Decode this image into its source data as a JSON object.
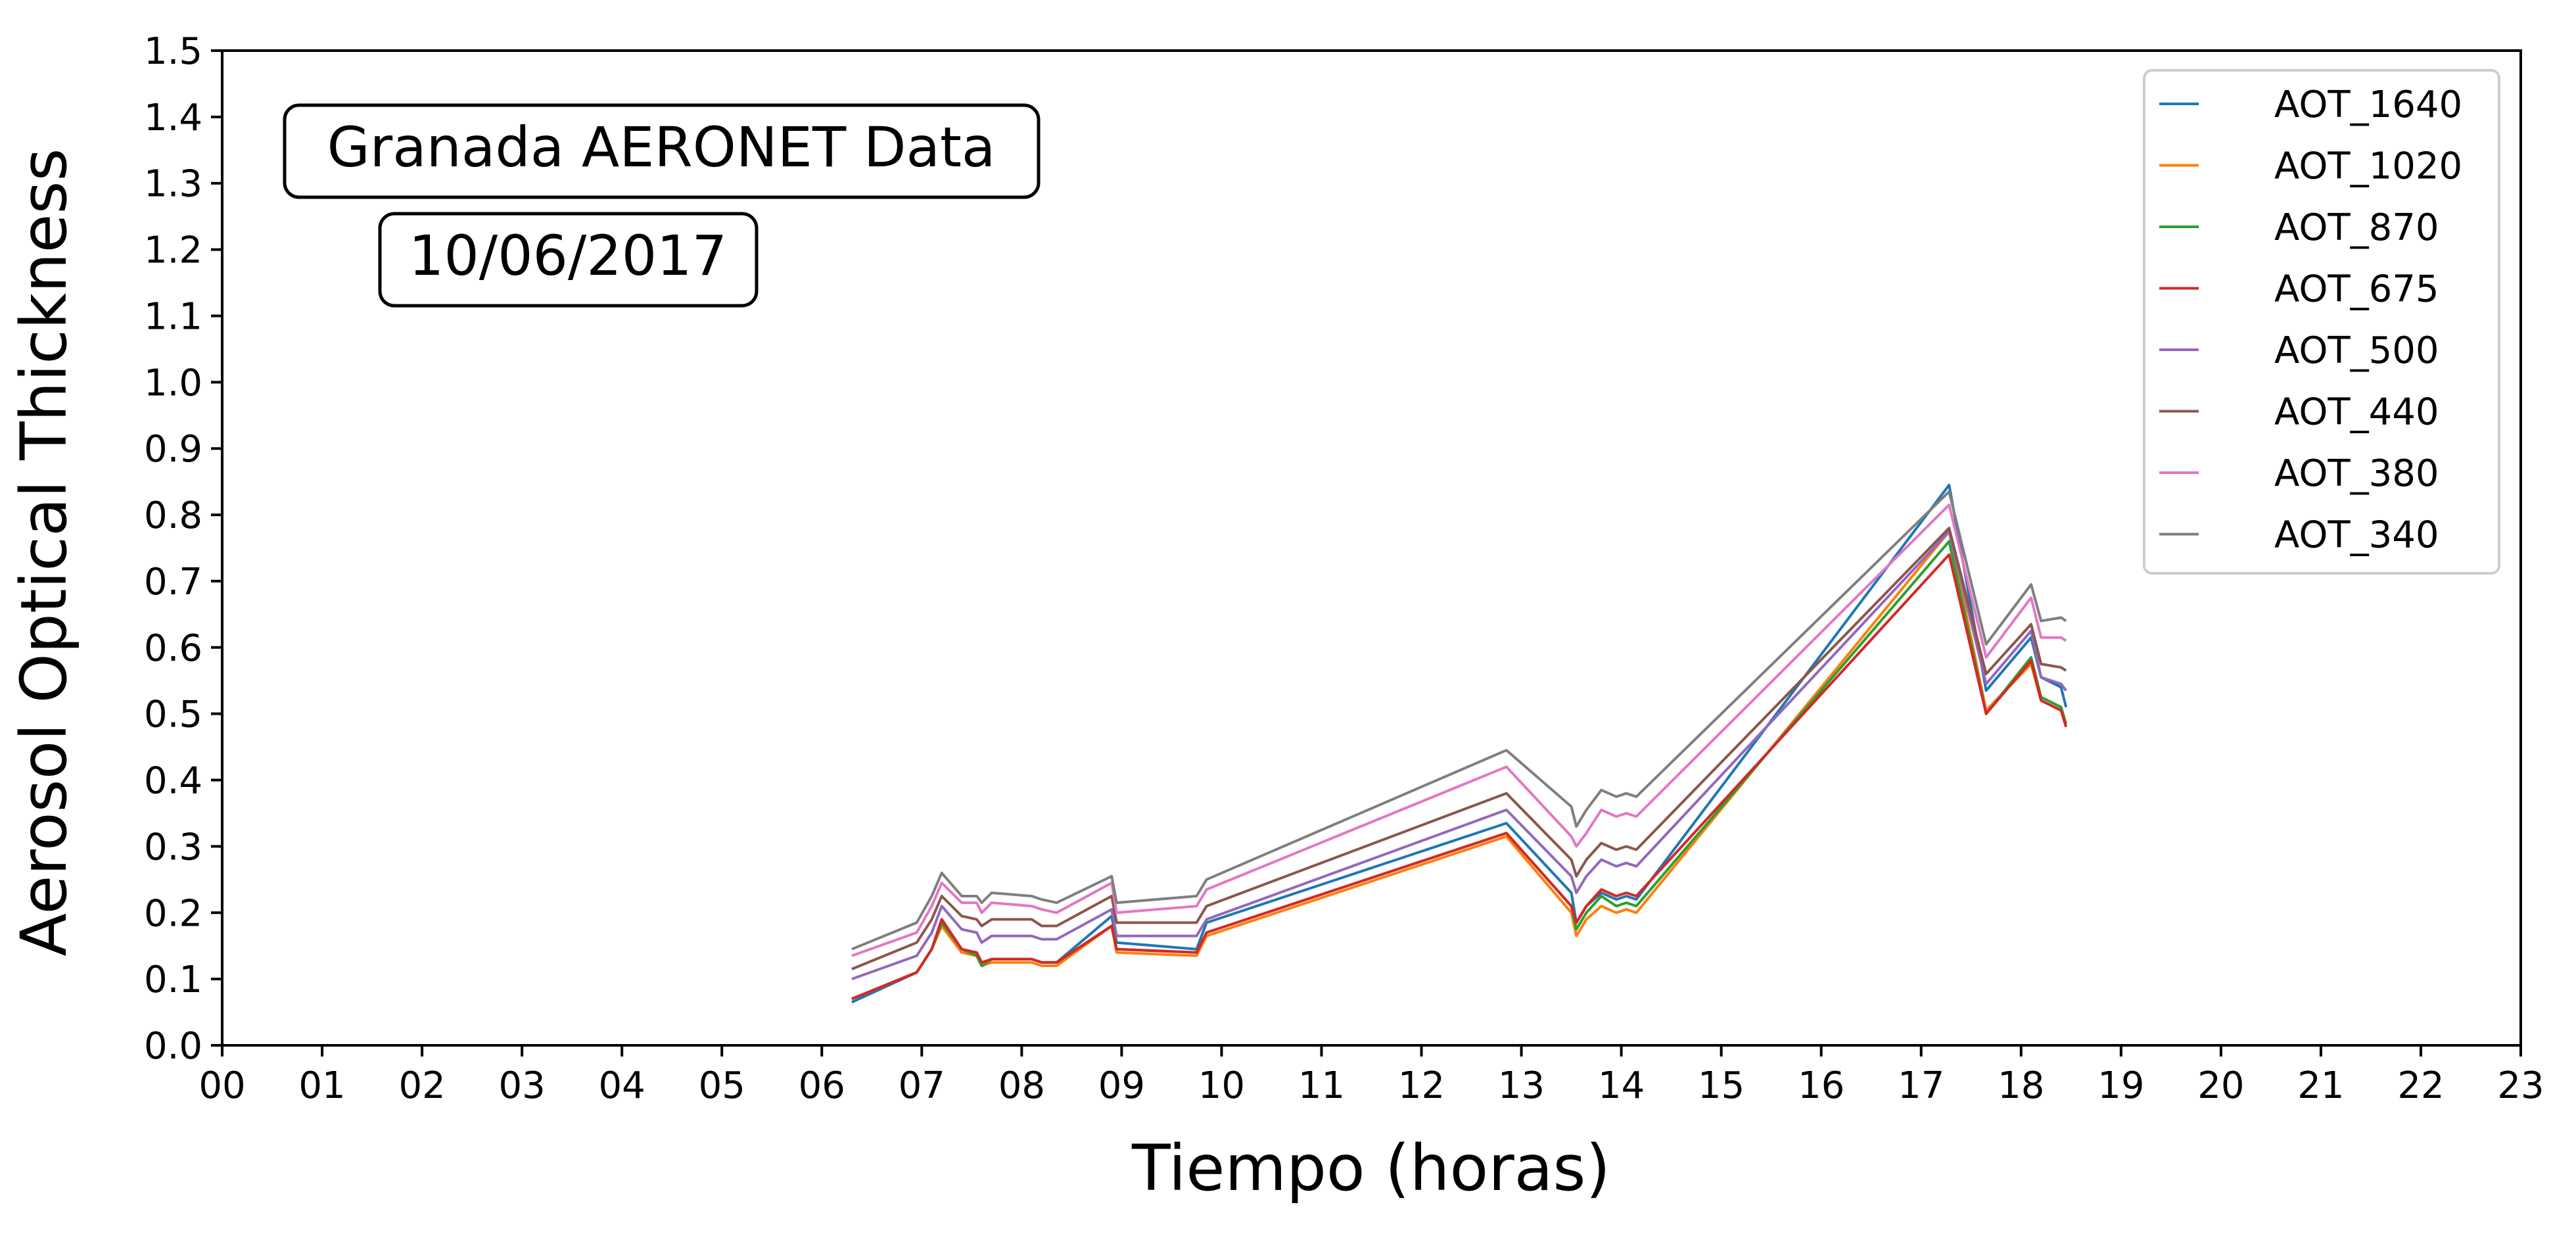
{
  "chart_data": {
    "type": "line",
    "xlabel": "Tiempo (horas)",
    "ylabel": "Aerosol Optical Thickness",
    "xlim": [
      0,
      23
    ],
    "ylim": [
      0.0,
      1.5
    ],
    "xticks": [
      "00",
      "01",
      "02",
      "03",
      "04",
      "05",
      "06",
      "07",
      "08",
      "09",
      "10",
      "11",
      "12",
      "13",
      "14",
      "15",
      "16",
      "17",
      "18",
      "19",
      "20",
      "21",
      "22",
      "23"
    ],
    "yticks": [
      "0.0",
      "0.1",
      "0.2",
      "0.3",
      "0.4",
      "0.5",
      "0.6",
      "0.7",
      "0.8",
      "0.9",
      "1.0",
      "1.1",
      "1.2",
      "1.3",
      "1.4",
      "1.5"
    ],
    "grid": false,
    "legend_position": "top-right",
    "annotations": [
      "Granada AERONET Data",
      "10/06/2017"
    ],
    "x": [
      6.3,
      6.95,
      7.1,
      7.2,
      7.4,
      7.55,
      7.6,
      7.7,
      8.1,
      8.2,
      8.35,
      8.9,
      8.95,
      9.75,
      9.85,
      12.85,
      13.5,
      13.55,
      13.65,
      13.8,
      13.95,
      14.05,
      14.15,
      17.28,
      17.65,
      18.1,
      18.2,
      18.4,
      18.45
    ],
    "series": [
      {
        "name": "AOT_1640",
        "color": "#1f77b4",
        "values": [
          0.065,
          0.11,
          0.145,
          0.19,
          0.145,
          0.135,
          0.12,
          0.13,
          0.13,
          0.125,
          0.125,
          0.195,
          0.155,
          0.145,
          0.185,
          0.335,
          0.23,
          0.185,
          0.21,
          0.23,
          0.22,
          0.225,
          0.22,
          0.845,
          0.535,
          0.615,
          0.555,
          0.54,
          0.51
        ]
      },
      {
        "name": "AOT_1020",
        "color": "#ff7f0e",
        "values": [
          0.07,
          0.11,
          0.145,
          0.18,
          0.14,
          0.135,
          0.12,
          0.125,
          0.125,
          0.12,
          0.12,
          0.18,
          0.14,
          0.135,
          0.165,
          0.315,
          0.2,
          0.165,
          0.19,
          0.21,
          0.2,
          0.205,
          0.2,
          0.775,
          0.505,
          0.575,
          0.52,
          0.505,
          0.485
        ]
      },
      {
        "name": "AOT_870",
        "color": "#2ca02c",
        "values": [
          0.07,
          0.11,
          0.145,
          0.185,
          0.145,
          0.135,
          0.12,
          0.13,
          0.13,
          0.125,
          0.125,
          0.18,
          0.145,
          0.14,
          0.17,
          0.32,
          0.21,
          0.175,
          0.2,
          0.225,
          0.21,
          0.215,
          0.21,
          0.76,
          0.5,
          0.585,
          0.525,
          0.51,
          0.485
        ]
      },
      {
        "name": "AOT_675",
        "color": "#d62728",
        "values": [
          0.07,
          0.11,
          0.145,
          0.19,
          0.145,
          0.14,
          0.125,
          0.13,
          0.13,
          0.125,
          0.125,
          0.18,
          0.145,
          0.14,
          0.17,
          0.32,
          0.21,
          0.185,
          0.21,
          0.235,
          0.225,
          0.23,
          0.225,
          0.74,
          0.5,
          0.58,
          0.52,
          0.505,
          0.48
        ]
      },
      {
        "name": "AOT_500",
        "color": "#9467bd",
        "values": [
          0.1,
          0.135,
          0.17,
          0.21,
          0.175,
          0.17,
          0.155,
          0.165,
          0.165,
          0.16,
          0.16,
          0.205,
          0.165,
          0.165,
          0.19,
          0.355,
          0.255,
          0.23,
          0.255,
          0.28,
          0.27,
          0.275,
          0.27,
          0.775,
          0.545,
          0.625,
          0.555,
          0.545,
          0.535
        ]
      },
      {
        "name": "AOT_440",
        "color": "#8c564b",
        "values": [
          0.115,
          0.155,
          0.19,
          0.225,
          0.195,
          0.19,
          0.18,
          0.19,
          0.19,
          0.18,
          0.18,
          0.225,
          0.185,
          0.185,
          0.21,
          0.38,
          0.28,
          0.255,
          0.28,
          0.305,
          0.295,
          0.3,
          0.295,
          0.78,
          0.56,
          0.635,
          0.575,
          0.57,
          0.565
        ]
      },
      {
        "name": "AOT_380",
        "color": "#e377c2",
        "values": [
          0.135,
          0.17,
          0.21,
          0.245,
          0.215,
          0.215,
          0.2,
          0.215,
          0.21,
          0.205,
          0.2,
          0.245,
          0.2,
          0.21,
          0.235,
          0.42,
          0.315,
          0.3,
          0.32,
          0.355,
          0.345,
          0.35,
          0.345,
          0.815,
          0.585,
          0.675,
          0.615,
          0.615,
          0.61
        ]
      },
      {
        "name": "AOT_340",
        "color": "#7f7f7f",
        "values": [
          0.145,
          0.185,
          0.225,
          0.26,
          0.225,
          0.225,
          0.215,
          0.23,
          0.225,
          0.22,
          0.215,
          0.255,
          0.215,
          0.225,
          0.25,
          0.445,
          0.36,
          0.33,
          0.355,
          0.385,
          0.375,
          0.38,
          0.375,
          0.835,
          0.605,
          0.695,
          0.64,
          0.645,
          0.64
        ]
      }
    ]
  }
}
